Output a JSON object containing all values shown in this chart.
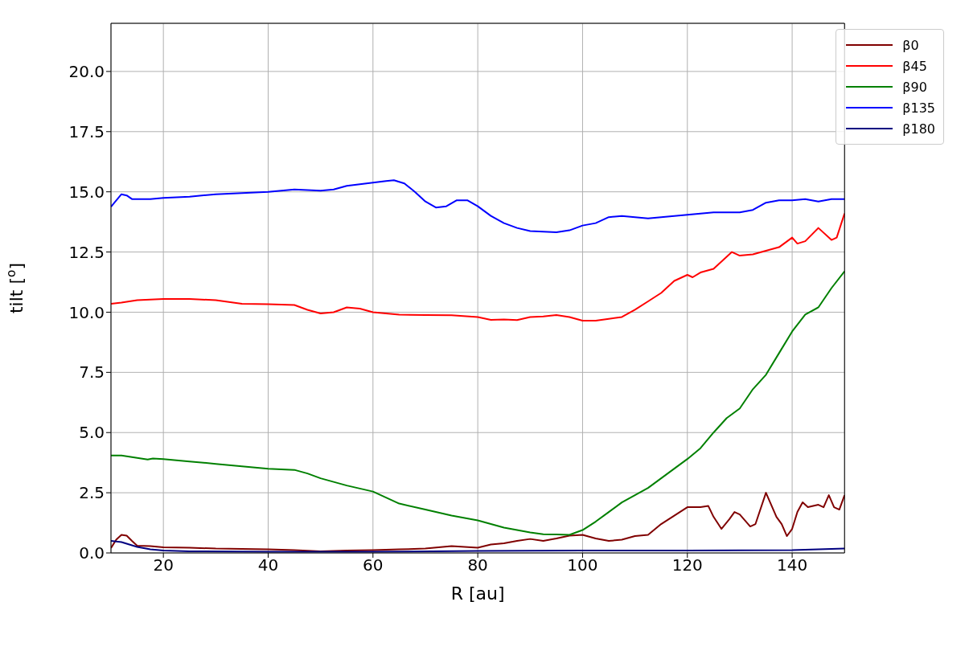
{
  "chart_data": {
    "type": "line",
    "xlabel": "R [au]",
    "ylabel": "tilt [$^{o}$]",
    "xlim": [
      10,
      150
    ],
    "xticks": [
      20,
      40,
      60,
      80,
      100,
      120,
      140
    ],
    "ylim": [
      0,
      22
    ],
    "yticks": [
      {
        "value": 0,
        "label": "0.0"
      },
      {
        "value": 2.5,
        "label": "2.5"
      },
      {
        "value": 5,
        "label": "5.0"
      },
      {
        "value": 7.5,
        "label": "7.5"
      },
      {
        "value": 10,
        "label": "10.0"
      },
      {
        "value": 12.5,
        "label": "12.5"
      },
      {
        "value": 15,
        "label": "15.0"
      },
      {
        "value": 17.5,
        "label": "17.5"
      },
      {
        "value": 20,
        "label": "20.0"
      }
    ],
    "grid": true,
    "legend": "top right",
    "marker": "none",
    "line_style": "solid",
    "series": [
      {
        "name": "β0",
        "color": "#800000",
        "x": [
          10,
          11,
          12,
          13,
          14,
          15,
          17.5,
          20,
          25,
          30,
          40,
          45,
          50,
          55,
          60,
          65,
          70,
          75,
          80,
          82.5,
          85,
          87.5,
          90,
          92.5,
          95,
          97.5,
          100,
          102.5,
          105,
          107.5,
          110,
          112.5,
          115,
          117.5,
          120,
          122.5,
          124,
          125,
          126.5,
          128,
          129,
          130,
          132,
          133,
          135,
          137,
          138,
          139,
          140,
          141,
          142,
          143,
          145,
          146,
          147,
          148,
          149,
          150
        ],
        "values": [
          0.2,
          0.55,
          0.75,
          0.72,
          0.5,
          0.3,
          0.28,
          0.23,
          0.22,
          0.18,
          0.15,
          0.12,
          0.07,
          0.1,
          0.12,
          0.15,
          0.18,
          0.28,
          0.22,
          0.35,
          0.4,
          0.5,
          0.58,
          0.5,
          0.6,
          0.72,
          0.75,
          0.6,
          0.5,
          0.55,
          0.7,
          0.75,
          1.2,
          1.55,
          1.9,
          1.9,
          1.95,
          1.5,
          1.0,
          1.4,
          1.7,
          1.6,
          1.1,
          1.2,
          2.5,
          1.5,
          1.2,
          0.7,
          1.0,
          1.7,
          2.1,
          1.9,
          2.0,
          1.9,
          2.4,
          1.9,
          1.8,
          2.4
        ]
      },
      {
        "name": "β45",
        "color": "#ff0000",
        "x": [
          10,
          12,
          15,
          20,
          25,
          30,
          35,
          40,
          45,
          47.5,
          50,
          52.5,
          55,
          57.5,
          60,
          65,
          70,
          75,
          80,
          82.5,
          85,
          87.5,
          90,
          92.5,
          95,
          97.5,
          100,
          102.5,
          105,
          107.5,
          110,
          112.5,
          115,
          117.5,
          120,
          121,
          122.5,
          125,
          127.5,
          128.5,
          130,
          132.5,
          135,
          137.5,
          140,
          141,
          142.5,
          145,
          147.5,
          148.5,
          150
        ],
        "values": [
          10.35,
          10.4,
          10.5,
          10.55,
          10.55,
          10.5,
          10.35,
          10.33,
          10.3,
          10.1,
          9.95,
          10.0,
          10.2,
          10.15,
          10.0,
          9.9,
          9.88,
          9.87,
          9.8,
          9.68,
          9.7,
          9.67,
          9.8,
          9.82,
          9.88,
          9.8,
          9.65,
          9.65,
          9.72,
          9.8,
          10.1,
          10.45,
          10.8,
          11.3,
          11.55,
          11.45,
          11.65,
          11.8,
          12.3,
          12.5,
          12.35,
          12.4,
          12.55,
          12.7,
          13.1,
          12.85,
          12.95,
          13.5,
          13.0,
          13.1,
          14.1
        ]
      },
      {
        "name": "β90",
        "color": "#008000",
        "x": [
          10,
          12,
          15,
          17,
          18,
          20,
          25,
          30,
          35,
          40,
          45,
          47.5,
          50,
          55,
          60,
          62.5,
          65,
          70,
          75,
          80,
          85,
          90,
          92.5,
          95,
          97.5,
          100,
          102.5,
          105,
          107.5,
          110,
          112.5,
          115,
          117.5,
          120,
          122.5,
          125,
          127.5,
          130,
          132.5,
          135,
          137.5,
          140,
          142.5,
          145,
          147.5,
          150
        ],
        "values": [
          4.05,
          4.05,
          3.95,
          3.88,
          3.92,
          3.9,
          3.8,
          3.7,
          3.6,
          3.5,
          3.45,
          3.3,
          3.1,
          2.8,
          2.55,
          2.3,
          2.05,
          1.8,
          1.55,
          1.35,
          1.05,
          0.85,
          0.78,
          0.77,
          0.75,
          0.95,
          1.3,
          1.7,
          2.1,
          2.4,
          2.7,
          3.1,
          3.5,
          3.9,
          4.35,
          5.0,
          5.6,
          6.0,
          6.8,
          7.4,
          8.3,
          9.2,
          9.9,
          10.2,
          11.0,
          11.7
        ]
      },
      {
        "name": "β135",
        "color": "#0000ff",
        "x": [
          10,
          12,
          13,
          14,
          15,
          17.5,
          20,
          25,
          30,
          35,
          40,
          45,
          50,
          52.5,
          55,
          60,
          62.5,
          64,
          66,
          68,
          70,
          72,
          74,
          76,
          78,
          80,
          82.5,
          85,
          87.5,
          90,
          95,
          97.5,
          100,
          102.5,
          105,
          107.5,
          110,
          112.5,
          115,
          120,
          122.5,
          125,
          130,
          132.5,
          135,
          137.5,
          140,
          142.5,
          145,
          147.5,
          150
        ],
        "values": [
          14.38,
          14.9,
          14.85,
          14.7,
          14.7,
          14.7,
          14.75,
          14.8,
          14.9,
          14.95,
          15.0,
          15.1,
          15.05,
          15.1,
          15.25,
          15.38,
          15.45,
          15.48,
          15.35,
          15.0,
          14.6,
          14.35,
          14.4,
          14.65,
          14.65,
          14.4,
          14.0,
          13.7,
          13.5,
          13.37,
          13.32,
          13.4,
          13.6,
          13.7,
          13.95,
          14.0,
          13.95,
          13.9,
          13.95,
          14.05,
          14.1,
          14.15,
          14.15,
          14.25,
          14.55,
          14.65,
          14.65,
          14.7,
          14.6,
          14.7,
          14.7
        ]
      },
      {
        "name": "β180",
        "color": "#000080",
        "x": [
          10,
          12,
          15,
          17.5,
          20,
          25,
          40,
          60,
          80,
          100,
          120,
          140,
          145,
          150
        ],
        "values": [
          0.5,
          0.45,
          0.25,
          0.15,
          0.1,
          0.07,
          0.05,
          0.05,
          0.08,
          0.1,
          0.1,
          0.12,
          0.15,
          0.18
        ]
      }
    ]
  }
}
